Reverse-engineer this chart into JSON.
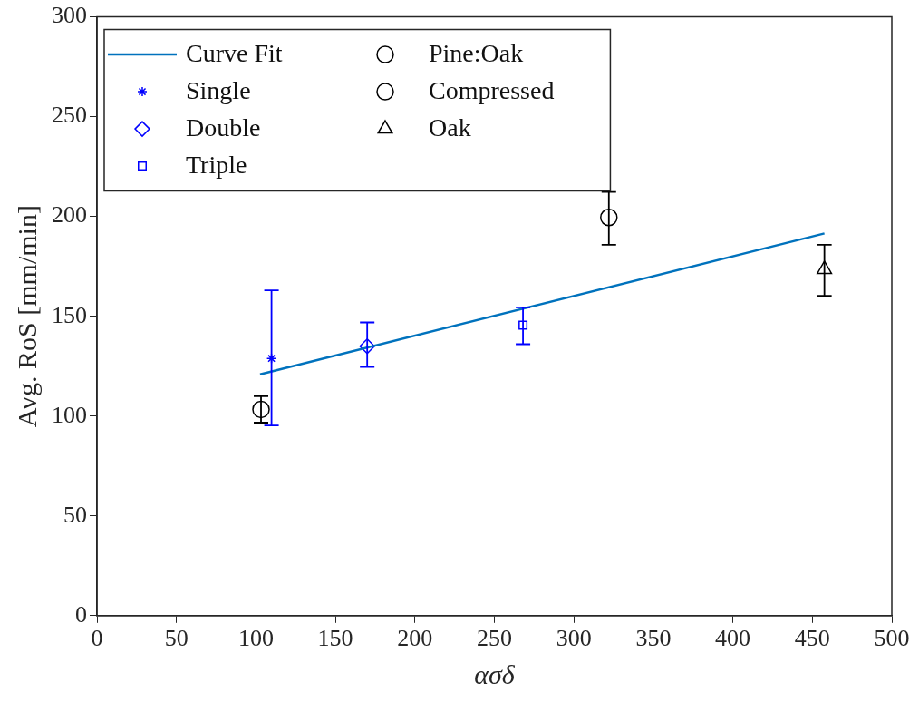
{
  "chart_data": {
    "type": "scatter",
    "xlabel": "ασδ",
    "ylabel": "Avg. RoS [mm/min]",
    "xlim": [
      0,
      500
    ],
    "xticks": [
      0,
      50,
      100,
      150,
      200,
      250,
      300,
      350,
      400,
      450,
      500
    ],
    "ylim": [
      0,
      300
    ],
    "yticks": [
      0,
      50,
      100,
      150,
      200,
      250,
      300
    ],
    "grid": false,
    "legend": "top left",
    "series": [
      {
        "name": "Curve Fit",
        "type": "line",
        "color": "#0072bd",
        "marker": "none",
        "line_style": "solid",
        "x": [
          102.6,
          457.6
        ],
        "values": [
          120.9,
          191.5
        ]
      },
      {
        "name": "Single",
        "color": "#0000ff",
        "marker": "cross",
        "x": [
          109.8
        ],
        "values": [
          128.9
        ],
        "errors": [
          [
            95.3,
            163
          ]
        ]
      },
      {
        "name": "Double",
        "color": "#0000ff",
        "marker": "diamond",
        "x": [
          170
        ],
        "values": [
          135
        ],
        "errors": [
          [
            124.6,
            146.9
          ]
        ]
      },
      {
        "name": "Triple",
        "color": "#0000ff",
        "marker": "square",
        "x": [
          268
        ],
        "values": [
          145.5
        ],
        "errors": [
          [
            136,
            154.5
          ]
        ]
      },
      {
        "name": "Pine:Oak",
        "color": "#000000",
        "marker": "circle",
        "x": [
          322
        ],
        "values": [
          199.5
        ],
        "errors": [
          [
            185.8,
            212.3
          ]
        ]
      },
      {
        "name": "Compressed",
        "color": "#000000",
        "marker": "circle",
        "x": [
          103.2
        ],
        "values": [
          103.3
        ],
        "errors": [
          [
            96.7,
            110
          ]
        ]
      },
      {
        "name": "Oak",
        "color": "#000000",
        "marker": "triangle",
        "x": [
          457.6
        ],
        "values": [
          173.5
        ],
        "errors": [
          [
            160.2,
            185.8
          ]
        ]
      }
    ]
  }
}
